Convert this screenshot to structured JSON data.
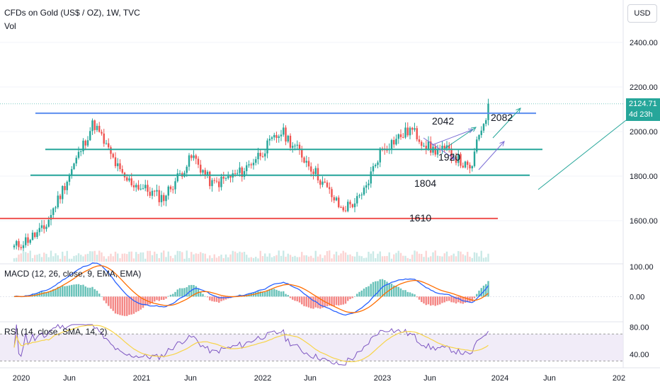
{
  "header": {
    "symbol_line": "CFDs on Gold (US$ / OZ), 1W, TVC",
    "vol_label": "Vol",
    "currency_button": "USD"
  },
  "price_tag": {
    "price": "2124.71",
    "countdown": "4d 23h"
  },
  "colors": {
    "up": "#26a69a",
    "down": "#ef5350",
    "resistance": "#5b8def",
    "support": "#26a69a",
    "bottom_line": "#ef5350",
    "macd": "#2962ff",
    "signal": "#ff6d00",
    "rsi": "#7e57c2",
    "rsi_ma": "#f7d44a"
  },
  "chart_data": {
    "type": "candlestick",
    "x_ticks": [
      "2020",
      "Jun",
      "2021",
      "Jun",
      "2022",
      "Jun",
      "2023",
      "Jun",
      "2024",
      "Jun",
      "202"
    ],
    "price_axis": {
      "ticks": [
        "2400.00",
        "2200.00",
        "2000.00",
        "1800.00",
        "1600.00"
      ],
      "ylim": [
        1420,
        2580
      ]
    },
    "current_price": 2124.71,
    "weekly_close_anchors": [
      {
        "date": "2019-12",
        "close": 1480
      },
      {
        "date": "2020-03",
        "close": 1560
      },
      {
        "date": "2020-08",
        "close": 2040
      },
      {
        "date": "2020-11",
        "close": 1790
      },
      {
        "date": "2021-03",
        "close": 1700
      },
      {
        "date": "2021-06",
        "close": 1890
      },
      {
        "date": "2021-08",
        "close": 1760
      },
      {
        "date": "2021-11",
        "close": 1820
      },
      {
        "date": "2022-03",
        "close": 2000
      },
      {
        "date": "2022-06",
        "close": 1840
      },
      {
        "date": "2022-09",
        "close": 1650
      },
      {
        "date": "2022-11",
        "close": 1700
      },
      {
        "date": "2023-01",
        "close": 1920
      },
      {
        "date": "2023-04",
        "close": 2010
      },
      {
        "date": "2023-06",
        "close": 1920
      },
      {
        "date": "2023-08",
        "close": 1910
      },
      {
        "date": "2023-10",
        "close": 1820
      },
      {
        "date": "2023-11",
        "close": 2000
      },
      {
        "date": "2023-12",
        "close": 2124.71
      }
    ],
    "levels": [
      {
        "label": "2082",
        "price": 2082,
        "color": "resistance"
      },
      {
        "label": "1920",
        "price": 1920,
        "color": "support"
      },
      {
        "label": "1804",
        "price": 1804,
        "color": "support"
      },
      {
        "label": "1610",
        "price": 1610,
        "color": "bottom_line"
      }
    ],
    "annotations": [
      "2042",
      "1920",
      "1804",
      "1610",
      "2082"
    ],
    "macd": {
      "label": "MACD (12, 26, close, 9, EMA, EMA)",
      "ticks": [
        "100.00",
        "0.00"
      ],
      "ylim": [
        -80,
        110
      ]
    },
    "rsi": {
      "label": "RSI (14, close, SMA, 14, 2)",
      "ticks": [
        "80.00",
        "40.00"
      ],
      "ylim": [
        22,
        86
      ],
      "band": [
        30,
        70
      ]
    }
  }
}
